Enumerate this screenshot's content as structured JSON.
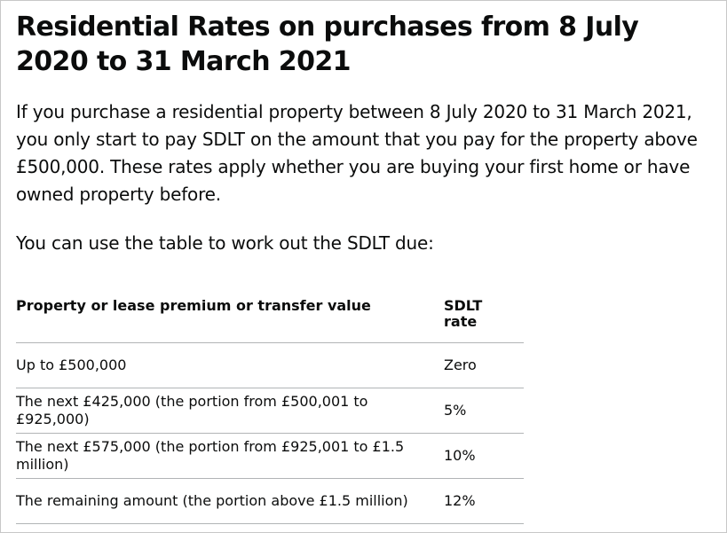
{
  "heading": "Residential Rates on purchases from 8 July 2020 to 31 March 2021",
  "intro": "If you purchase a residential property between 8 July 2020 to 31 March 2021, you only start to pay SDLT on the amount that you pay for the property above £500,000. These rates apply whether you are buying your first home or have owned property before.",
  "table_intro": "You can use the table to work out the SDLT due:",
  "table": {
    "headers": [
      "Property or lease premium or transfer value",
      "SDLT rate"
    ],
    "rows": [
      [
        "Up to £500,000",
        "Zero"
      ],
      [
        "The next £425,000 (the portion from £500,001 to £925,000)",
        "5%"
      ],
      [
        "The next £575,000 (the portion from £925,001 to £1.5 million)",
        "10%"
      ],
      [
        "The remaining amount (the portion above £1.5 million)",
        "12%"
      ]
    ]
  }
}
